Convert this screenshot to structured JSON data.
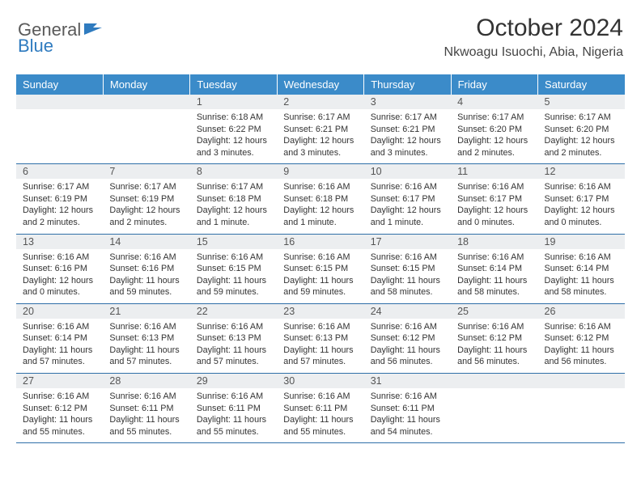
{
  "brand": {
    "part1": "General",
    "part2": "Blue"
  },
  "title": "October 2024",
  "location": "Nkwoagu Isuochi, Abia, Nigeria",
  "colors": {
    "header_bg": "#3b8bc9",
    "header_text": "#ffffff",
    "daynum_bg": "#eceef0",
    "border": "#2f6fa8",
    "brand_gray": "#5a5a5a",
    "brand_blue": "#2f7bbf"
  },
  "weekdays": [
    "Sunday",
    "Monday",
    "Tuesday",
    "Wednesday",
    "Thursday",
    "Friday",
    "Saturday"
  ],
  "weeks": [
    {
      "nums": [
        "",
        "",
        "1",
        "2",
        "3",
        "4",
        "5"
      ],
      "details": [
        "",
        "",
        "Sunrise: 6:18 AM\nSunset: 6:22 PM\nDaylight: 12 hours and 3 minutes.",
        "Sunrise: 6:17 AM\nSunset: 6:21 PM\nDaylight: 12 hours and 3 minutes.",
        "Sunrise: 6:17 AM\nSunset: 6:21 PM\nDaylight: 12 hours and 3 minutes.",
        "Sunrise: 6:17 AM\nSunset: 6:20 PM\nDaylight: 12 hours and 2 minutes.",
        "Sunrise: 6:17 AM\nSunset: 6:20 PM\nDaylight: 12 hours and 2 minutes."
      ]
    },
    {
      "nums": [
        "6",
        "7",
        "8",
        "9",
        "10",
        "11",
        "12"
      ],
      "details": [
        "Sunrise: 6:17 AM\nSunset: 6:19 PM\nDaylight: 12 hours and 2 minutes.",
        "Sunrise: 6:17 AM\nSunset: 6:19 PM\nDaylight: 12 hours and 2 minutes.",
        "Sunrise: 6:17 AM\nSunset: 6:18 PM\nDaylight: 12 hours and 1 minute.",
        "Sunrise: 6:16 AM\nSunset: 6:18 PM\nDaylight: 12 hours and 1 minute.",
        "Sunrise: 6:16 AM\nSunset: 6:17 PM\nDaylight: 12 hours and 1 minute.",
        "Sunrise: 6:16 AM\nSunset: 6:17 PM\nDaylight: 12 hours and 0 minutes.",
        "Sunrise: 6:16 AM\nSunset: 6:17 PM\nDaylight: 12 hours and 0 minutes."
      ]
    },
    {
      "nums": [
        "13",
        "14",
        "15",
        "16",
        "17",
        "18",
        "19"
      ],
      "details": [
        "Sunrise: 6:16 AM\nSunset: 6:16 PM\nDaylight: 12 hours and 0 minutes.",
        "Sunrise: 6:16 AM\nSunset: 6:16 PM\nDaylight: 11 hours and 59 minutes.",
        "Sunrise: 6:16 AM\nSunset: 6:15 PM\nDaylight: 11 hours and 59 minutes.",
        "Sunrise: 6:16 AM\nSunset: 6:15 PM\nDaylight: 11 hours and 59 minutes.",
        "Sunrise: 6:16 AM\nSunset: 6:15 PM\nDaylight: 11 hours and 58 minutes.",
        "Sunrise: 6:16 AM\nSunset: 6:14 PM\nDaylight: 11 hours and 58 minutes.",
        "Sunrise: 6:16 AM\nSunset: 6:14 PM\nDaylight: 11 hours and 58 minutes."
      ]
    },
    {
      "nums": [
        "20",
        "21",
        "22",
        "23",
        "24",
        "25",
        "26"
      ],
      "details": [
        "Sunrise: 6:16 AM\nSunset: 6:14 PM\nDaylight: 11 hours and 57 minutes.",
        "Sunrise: 6:16 AM\nSunset: 6:13 PM\nDaylight: 11 hours and 57 minutes.",
        "Sunrise: 6:16 AM\nSunset: 6:13 PM\nDaylight: 11 hours and 57 minutes.",
        "Sunrise: 6:16 AM\nSunset: 6:13 PM\nDaylight: 11 hours and 57 minutes.",
        "Sunrise: 6:16 AM\nSunset: 6:12 PM\nDaylight: 11 hours and 56 minutes.",
        "Sunrise: 6:16 AM\nSunset: 6:12 PM\nDaylight: 11 hours and 56 minutes.",
        "Sunrise: 6:16 AM\nSunset: 6:12 PM\nDaylight: 11 hours and 56 minutes."
      ]
    },
    {
      "nums": [
        "27",
        "28",
        "29",
        "30",
        "31",
        "",
        ""
      ],
      "details": [
        "Sunrise: 6:16 AM\nSunset: 6:12 PM\nDaylight: 11 hours and 55 minutes.",
        "Sunrise: 6:16 AM\nSunset: 6:11 PM\nDaylight: 11 hours and 55 minutes.",
        "Sunrise: 6:16 AM\nSunset: 6:11 PM\nDaylight: 11 hours and 55 minutes.",
        "Sunrise: 6:16 AM\nSunset: 6:11 PM\nDaylight: 11 hours and 55 minutes.",
        "Sunrise: 6:16 AM\nSunset: 6:11 PM\nDaylight: 11 hours and 54 minutes.",
        "",
        ""
      ]
    }
  ]
}
